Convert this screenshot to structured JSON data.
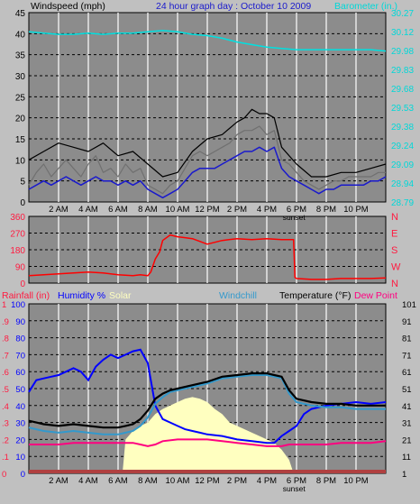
{
  "header": {
    "left_title": "Windspeed (mph)",
    "center_title": "24 hour graph day : October 10 2009",
    "right_title": "Barometer (in.)"
  },
  "colors": {
    "panel_bg": "#8c8c8c",
    "page_bg": "#c0c0c0",
    "wind_gust": "#000000",
    "wind_avg": "#1a1acc",
    "wind_gray": "#707070",
    "barometer": "#00e0e0",
    "direction": "#ff0000",
    "rainfall": "#ff0000",
    "humidity": "#0000ff",
    "solar": "#ffffc0",
    "windchill": "#3399cc",
    "temperature": "#000000",
    "dewpoint": "#ff0080"
  },
  "time_axis": {
    "labels": [
      "2 AM",
      "4 AM",
      "6 AM",
      "8 AM",
      "10 AM",
      "12 PM",
      "2 PM",
      "4 PM",
      "6 PM",
      "8 PM",
      "10 PM"
    ],
    "sunset_label": "sunset",
    "sunset_hour": 17.8
  },
  "chart_data": [
    {
      "type": "line",
      "id": "wind_barometer",
      "title": "24 hour graph day : October 10 2009",
      "xlabel": "",
      "ylabel": "Windspeed (mph)",
      "y2label": "Barometer (in.)",
      "x_hours_range": [
        0,
        24
      ],
      "ylim": [
        0,
        45
      ],
      "y_ticks": [
        "0",
        "5",
        "10",
        "15",
        "20",
        "25",
        "30",
        "35",
        "40",
        "45"
      ],
      "y2_ticks": [
        "28.79",
        "28.94",
        "29.09",
        "29.24",
        "29.38",
        "29.53",
        "29.68",
        "29.83",
        "29.98",
        "30.12",
        "30.27"
      ],
      "y2lim": [
        28.79,
        30.27
      ],
      "series": [
        {
          "name": "Windspeed",
          "color": "#000000",
          "x": [
            0,
            0.5,
            1,
            1.5,
            2,
            2.5,
            3,
            3.5,
            4,
            4.5,
            5,
            5.5,
            6,
            6.5,
            7,
            7.5,
            8,
            8.5,
            9,
            9.5,
            10,
            10.5,
            11,
            11.5,
            12,
            12.5,
            13,
            13.5,
            14,
            14.5,
            15,
            15.5,
            16,
            16.5,
            17,
            17.5,
            18,
            18.5,
            19,
            19.5,
            20,
            20.5,
            21,
            21.5,
            22,
            22.5,
            23,
            23.5,
            24
          ],
          "values": [
            4,
            7,
            9,
            6,
            8,
            10,
            8,
            6,
            9,
            11,
            7,
            8,
            6,
            9,
            7,
            8,
            4,
            3,
            2,
            4,
            5,
            8,
            11,
            12,
            11,
            12,
            13,
            14,
            16,
            17,
            17,
            18,
            16,
            17,
            10,
            9,
            7,
            5,
            4,
            3,
            4,
            5,
            5,
            6,
            6,
            6,
            6,
            7,
            7
          ]
        },
        {
          "name": "Gust",
          "color": "#000000",
          "x": [
            0,
            1,
            2,
            3,
            4,
            5,
            6,
            7,
            8,
            9,
            10,
            11,
            12,
            13,
            14,
            14.5,
            15,
            15.5,
            16,
            16.5,
            17,
            18,
            19,
            20,
            21,
            22,
            23,
            24
          ],
          "values": [
            10,
            12,
            14,
            13,
            12,
            14,
            11,
            12,
            9,
            6,
            7,
            12,
            15,
            16,
            19,
            20,
            22,
            21,
            21,
            20,
            13,
            9,
            6,
            6,
            7,
            7,
            8,
            9
          ]
        },
        {
          "name": "Average",
          "color": "#1a1acc",
          "x": [
            0,
            0.5,
            1,
            1.5,
            2,
            2.5,
            3,
            3.5,
            4,
            4.5,
            5,
            5.5,
            6,
            6.5,
            7,
            7.5,
            8,
            8.5,
            9,
            9.5,
            10,
            10.5,
            11,
            11.5,
            12,
            12.5,
            13,
            13.5,
            14,
            14.5,
            15,
            15.5,
            16,
            16.5,
            17,
            17.5,
            18,
            18.5,
            19,
            19.5,
            20,
            20.5,
            21,
            21.5,
            22,
            22.5,
            23,
            23.5,
            24
          ],
          "values": [
            3,
            4,
            5,
            4,
            5,
            6,
            5,
            4,
            5,
            6,
            5,
            5,
            4,
            5,
            4,
            5,
            3,
            2,
            1,
            2,
            3,
            5,
            7,
            8,
            8,
            8,
            9,
            10,
            11,
            12,
            12,
            13,
            12,
            13,
            8,
            6,
            5,
            4,
            3,
            2,
            3,
            3,
            4,
            4,
            4,
            4,
            5,
            5,
            6
          ]
        },
        {
          "name": "Barometer",
          "color": "#00e0e0",
          "x": [
            0,
            1,
            2,
            3,
            4,
            5,
            6,
            7,
            8,
            9,
            10,
            11,
            12,
            13,
            14,
            15,
            16,
            17,
            18,
            19,
            20,
            21,
            22,
            23,
            24
          ],
          "values": [
            30.12,
            30.11,
            30.1,
            30.1,
            30.11,
            30.1,
            30.11,
            30.11,
            30.12,
            30.13,
            30.12,
            30.1,
            30.09,
            30.07,
            30.04,
            30.02,
            30.0,
            29.99,
            29.98,
            29.98,
            29.98,
            29.98,
            29.98,
            29.98,
            29.97
          ]
        }
      ]
    },
    {
      "type": "line",
      "id": "wind_direction",
      "ylim": [
        0,
        360
      ],
      "y_ticks": [
        "0",
        "90",
        "180",
        "270",
        "360"
      ],
      "y2_ticks": [
        "N",
        "W",
        "S",
        "E",
        "N"
      ],
      "series": [
        {
          "name": "Wind Direction",
          "color": "#ff0000",
          "x": [
            0,
            1,
            2,
            3,
            4,
            5,
            6,
            7,
            7.5,
            8,
            8.2,
            8.5,
            8.8,
            9,
            9.5,
            10,
            10.5,
            11,
            12,
            13,
            14,
            15,
            16,
            17,
            17.8,
            17.9,
            18,
            19,
            20,
            21,
            22,
            23,
            24
          ],
          "values": [
            40,
            45,
            50,
            55,
            60,
            55,
            45,
            40,
            45,
            40,
            60,
            130,
            170,
            230,
            260,
            250,
            245,
            240,
            210,
            230,
            240,
            235,
            240,
            235,
            235,
            30,
            25,
            20,
            20,
            25,
            25,
            25,
            28
          ]
        }
      ]
    },
    {
      "type": "line",
      "id": "temp_humidity",
      "xlabel": "",
      "ylabel": "Temperature (°F)",
      "legend": [
        "Rainfall (in)",
        "Humidity %",
        "Solar",
        "Windchill",
        "Temperature (°F)",
        "Dew Point"
      ],
      "ylim": [
        1,
        101
      ],
      "left_ticks_red": [
        "0",
        ".1",
        ".2",
        ".3",
        ".4",
        ".5",
        ".6",
        ".7",
        ".8",
        ".9",
        "1"
      ],
      "left_ticks_blue": [
        "0",
        "10",
        "20",
        "30",
        "40",
        "50",
        "60",
        "70",
        "80",
        "90",
        "100"
      ],
      "right_ticks": [
        "1",
        "11",
        "21",
        "31",
        "41",
        "51",
        "61",
        "71",
        "81",
        "91",
        "101"
      ],
      "series": [
        {
          "name": "Solar",
          "color": "#ffffc0",
          "x": [
            0,
            6.3,
            6.5,
            7,
            7.5,
            8,
            8.5,
            9,
            9.5,
            10,
            10.5,
            11,
            11.5,
            12,
            12.5,
            13,
            13.5,
            14,
            14.5,
            15,
            15.5,
            16,
            16.5,
            17,
            17.5,
            17.8,
            24
          ],
          "values": [
            0,
            0,
            20,
            25,
            28,
            30,
            35,
            38,
            40,
            42,
            44,
            45,
            44,
            42,
            38,
            35,
            30,
            28,
            26,
            24,
            22,
            20,
            18,
            14,
            8,
            0,
            0
          ]
        },
        {
          "name": "Humidity %",
          "color": "#0000ff",
          "x": [
            0,
            0.5,
            1,
            1.5,
            2,
            2.5,
            3,
            3.5,
            4,
            4.5,
            5,
            5.5,
            6,
            6.5,
            7,
            7.5,
            8,
            8.5,
            9,
            9.5,
            10,
            10.5,
            11,
            11.5,
            12,
            13,
            14,
            15,
            16,
            16.5,
            17,
            17.5,
            18,
            18.5,
            19,
            20,
            21,
            22,
            23,
            24
          ],
          "values": [
            48,
            55,
            56,
            57,
            58,
            60,
            62,
            60,
            55,
            63,
            67,
            70,
            68,
            70,
            72,
            73,
            65,
            40,
            32,
            30,
            28,
            26,
            25,
            24,
            23,
            22,
            20,
            19,
            18,
            18,
            22,
            25,
            28,
            35,
            38,
            40,
            41,
            42,
            41,
            42
          ]
        },
        {
          "name": "Temperature (°F)",
          "color": "#000000",
          "x": [
            0,
            0.5,
            1,
            2,
            3,
            4,
            5,
            6,
            6.5,
            7,
            7.5,
            8,
            8.5,
            9,
            9.5,
            10,
            11,
            12,
            13,
            14,
            15,
            16,
            16.5,
            17,
            17.5,
            18,
            19,
            20,
            21,
            22,
            23,
            24
          ],
          "values": [
            32,
            31,
            30,
            29,
            30,
            29,
            28,
            28,
            29,
            30,
            33,
            38,
            45,
            48,
            50,
            51,
            53,
            55,
            58,
            59,
            60,
            60,
            59,
            58,
            50,
            45,
            43,
            42,
            42,
            41,
            41,
            41
          ]
        },
        {
          "name": "Windchill",
          "color": "#3399cc",
          "x": [
            0,
            0.5,
            1,
            2,
            3,
            4,
            5,
            6,
            6.5,
            7,
            7.5,
            8,
            8.5,
            9,
            9.5,
            10,
            11,
            12,
            13,
            14,
            15,
            16,
            16.5,
            17,
            17.5,
            18,
            19,
            20,
            21,
            22,
            23,
            24
          ],
          "values": [
            28,
            27,
            26,
            25,
            26,
            25,
            24,
            24,
            25,
            26,
            29,
            34,
            42,
            46,
            49,
            50,
            52,
            54,
            57,
            58,
            59,
            59,
            58,
            57,
            48,
            43,
            41,
            40,
            40,
            39,
            39,
            39
          ]
        },
        {
          "name": "Dew Point",
          "color": "#ff0080",
          "x": [
            0,
            1,
            2,
            3,
            4,
            5,
            6,
            7,
            7.5,
            8,
            8.5,
            9,
            10,
            11,
            12,
            13,
            14,
            15,
            16,
            16.5,
            17,
            17.5,
            18,
            19,
            20,
            21,
            22,
            23,
            24
          ],
          "values": [
            18,
            18,
            18,
            19,
            19,
            19,
            19,
            19,
            18,
            17,
            18,
            20,
            21,
            21,
            21,
            20,
            19,
            18,
            17,
            17,
            17,
            18,
            18,
            18,
            18,
            19,
            19,
            19,
            20
          ]
        },
        {
          "name": "Rainfall (in)",
          "color": "#ff0000",
          "x": [
            0,
            24
          ],
          "values": [
            0,
            0
          ]
        }
      ]
    }
  ]
}
